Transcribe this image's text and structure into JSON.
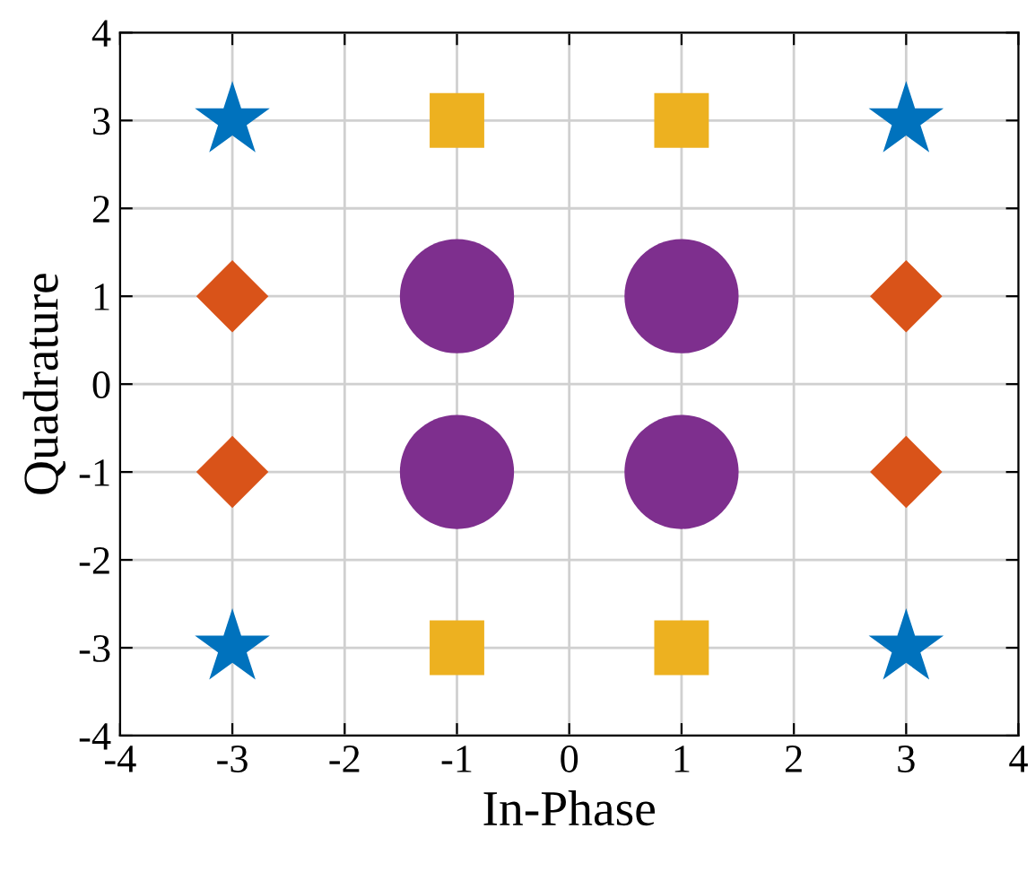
{
  "chart_data": {
    "type": "scatter",
    "xlabel": "In-Phase",
    "ylabel": "Quadrature",
    "series": [
      {
        "color": "#0072bd",
        "marker": "star",
        "x": [
          -3,
          3,
          -3,
          3
        ],
        "values": [
          3,
          3,
          -3,
          -3
        ]
      },
      {
        "color": "#d95319",
        "marker": "diamond",
        "x": [
          -3,
          3,
          -3,
          3
        ],
        "values": [
          1,
          1,
          -1,
          -1
        ]
      },
      {
        "color": "#edb120",
        "marker": "square",
        "x": [
          -1,
          1,
          -1,
          1
        ],
        "values": [
          3,
          3,
          -3,
          -3
        ]
      },
      {
        "color": "#7e2f8e",
        "marker": "circle",
        "x": [
          -1,
          1,
          -1,
          1
        ],
        "values": [
          1,
          1,
          -1,
          -1
        ]
      }
    ],
    "xlim": [
      -4,
      4
    ],
    "ylim": [
      -4,
      4
    ],
    "xticks": [
      -4,
      -3,
      -2,
      -1,
      0,
      1,
      2,
      3,
      4
    ],
    "yticks": [
      -4,
      -3,
      -2,
      -1,
      0,
      1,
      2,
      3,
      4
    ],
    "grid": true
  }
}
